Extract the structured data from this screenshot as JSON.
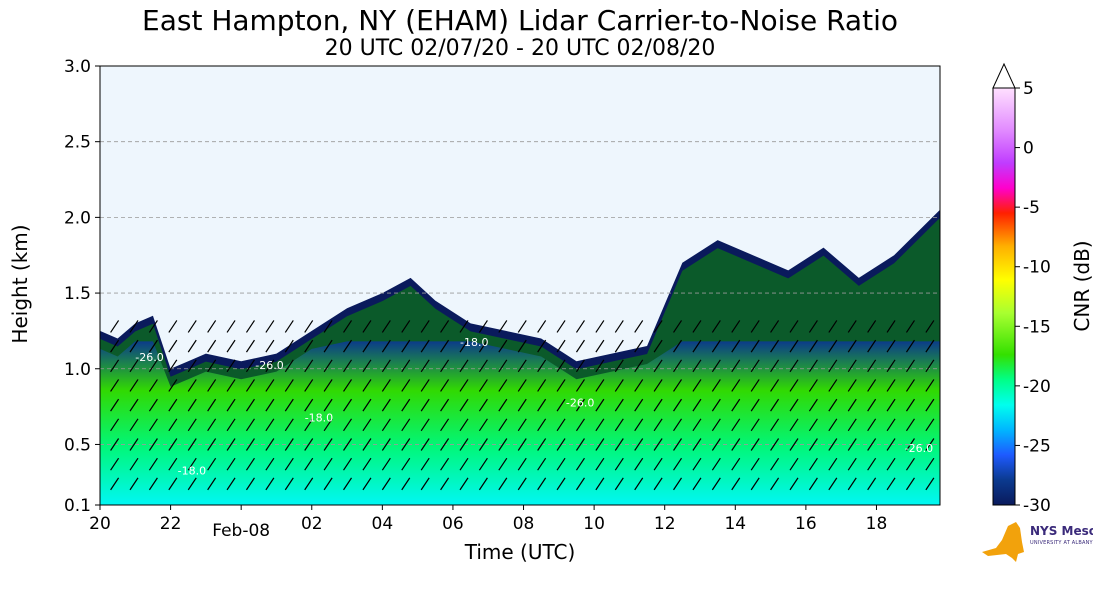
{
  "chart_data": {
    "type": "heatmap",
    "title": "East Hampton, NY (EHAM) Lidar Carrier-to-Noise Ratio",
    "subtitle": "20 UTC 02/07/20 - 20 UTC 02/08/20",
    "xlabel": "Time (UTC)",
    "ylabel": "Height (km)",
    "x_tick_labels": [
      "20",
      "22",
      "Feb-08",
      "02",
      "04",
      "06",
      "08",
      "10",
      "12",
      "14",
      "16",
      "18"
    ],
    "x_tick_hours": [
      20,
      22,
      24,
      26,
      28,
      30,
      32,
      34,
      36,
      38,
      40,
      42
    ],
    "xlim_hours": [
      20,
      43.8
    ],
    "y_ticks": [
      0.1,
      0.5,
      1.0,
      1.5,
      2.0,
      2.5,
      3.0
    ],
    "y_tick_labels": [
      "0.1",
      "0.5",
      "1.0",
      "1.5",
      "2.0",
      "2.5",
      "3.0"
    ],
    "ylim": [
      0.1,
      3.0
    ],
    "grid": "horizontal dashed",
    "colorbar": {
      "label": "CNR (dB)",
      "min": -30,
      "max": 5,
      "ticks": [
        5,
        0,
        -5,
        -10,
        -15,
        -20,
        -25,
        -30
      ],
      "tick_labels": [
        "5",
        "0",
        "-5",
        "-10",
        "-15",
        "-20",
        "-25",
        "-30"
      ],
      "extend": "max"
    },
    "contour_labels": [
      "-26.0",
      "-26.0",
      "-26.0",
      "-18.0",
      "-18.0",
      "-18.0",
      "-26.0"
    ],
    "background_color": "#eef6fd",
    "cloud_top_profile": [
      [
        20.0,
        1.25
      ],
      [
        20.5,
        1.2
      ],
      [
        21.0,
        1.3
      ],
      [
        21.5,
        1.35
      ],
      [
        22.0,
        1.0
      ],
      [
        22.5,
        1.05
      ],
      [
        23.0,
        1.1
      ],
      [
        24.0,
        1.05
      ],
      [
        25.0,
        1.1
      ],
      [
        26.0,
        1.25
      ],
      [
        27.0,
        1.4
      ],
      [
        28.0,
        1.5
      ],
      [
        28.8,
        1.6
      ],
      [
        29.5,
        1.45
      ],
      [
        30.5,
        1.3
      ],
      [
        31.5,
        1.25
      ],
      [
        32.5,
        1.2
      ],
      [
        33.5,
        1.05
      ],
      [
        34.5,
        1.1
      ],
      [
        35.5,
        1.15
      ],
      [
        36.5,
        1.7
      ],
      [
        37.5,
        1.85
      ],
      [
        38.5,
        1.75
      ],
      [
        39.5,
        1.65
      ],
      [
        40.5,
        1.8
      ],
      [
        41.5,
        1.6
      ],
      [
        42.5,
        1.75
      ],
      [
        43.8,
        2.05
      ]
    ]
  },
  "logo": {
    "text": "NYS Mesonet",
    "subtext": "UNIVERSITY AT ALBANY"
  }
}
